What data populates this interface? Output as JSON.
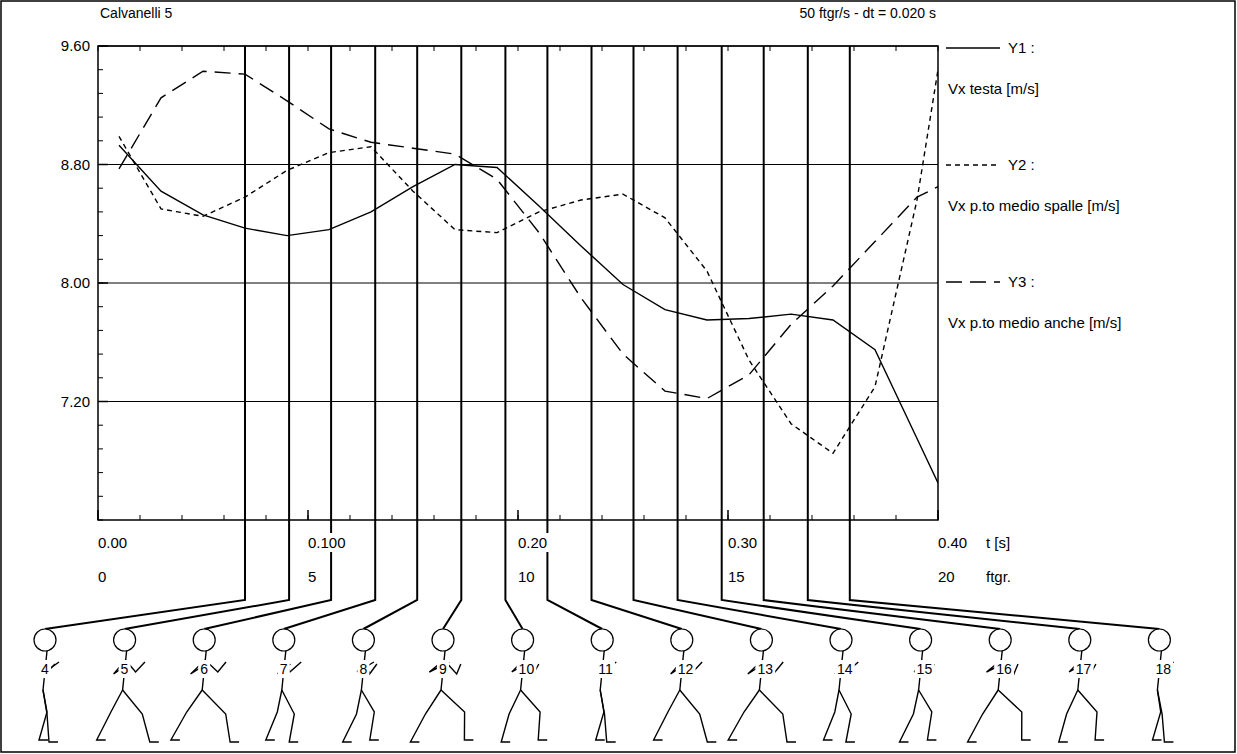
{
  "chart_data": {
    "type": "line",
    "title": "Calvanelli 5",
    "subtitle": "50 ftgr/s - dt = 0.020 s",
    "x_label": "t [s]",
    "x2_label": "ftgr.",
    "x": [
      0.01,
      0.03,
      0.05,
      0.07,
      0.09,
      0.11,
      0.13,
      0.15,
      0.17,
      0.19,
      0.21,
      0.23,
      0.25,
      0.27,
      0.29,
      0.31,
      0.33,
      0.35,
      0.37,
      0.39,
      0.4
    ],
    "series": [
      {
        "name": "Y1 :",
        "label": "Vx testa [m/s]",
        "color": "#000000",
        "line_style": "solid",
        "values": [
          8.93,
          8.62,
          8.46,
          8.37,
          8.32,
          8.36,
          8.48,
          8.65,
          8.8,
          8.78,
          8.52,
          8.25,
          7.99,
          7.82,
          7.75,
          7.76,
          7.79,
          7.75,
          7.55,
          6.95,
          6.65
        ]
      },
      {
        "name": "Y2 :",
        "label": "Vx p.to medio spalle [m/s]",
        "color": "#000000",
        "line_style": "dashed",
        "values": [
          8.99,
          8.5,
          8.45,
          8.58,
          8.76,
          8.88,
          8.92,
          8.62,
          8.36,
          8.34,
          8.48,
          8.56,
          8.6,
          8.44,
          8.08,
          7.48,
          7.05,
          6.85,
          7.3,
          8.56,
          9.44
        ]
      },
      {
        "name": "Y3 :",
        "label": "Vx p.to medio anche [m/s]",
        "color": "#000000",
        "line_style": "long_dash",
        "values": [
          8.77,
          9.25,
          9.43,
          9.41,
          9.23,
          9.04,
          8.95,
          8.91,
          8.87,
          8.7,
          8.34,
          7.9,
          7.52,
          7.27,
          7.22,
          7.38,
          7.72,
          7.98,
          8.28,
          8.58,
          8.65
        ]
      }
    ],
    "xlim": [
      0,
      0.4
    ],
    "xticks": [
      {
        "value": 0,
        "label": "0.00"
      },
      {
        "value": 0.1,
        "label": "0.100"
      },
      {
        "value": 0.2,
        "label": "0.20"
      },
      {
        "value": 0.3,
        "label": "0.30"
      },
      {
        "value": 0.4,
        "label": "0.40"
      }
    ],
    "x2lim": [
      0,
      20
    ],
    "x2ticks": [
      0,
      5,
      10,
      15,
      20
    ],
    "ylim": [
      6.4,
      9.6
    ],
    "yticks": [
      {
        "value": 7.2,
        "label": "7.20"
      },
      {
        "value": 8.0,
        "label": "8.00"
      },
      {
        "value": 8.8,
        "label": "8.80"
      },
      {
        "value": 9.6,
        "label": "9.60"
      }
    ],
    "grid": true,
    "legend": "right",
    "frames": [
      {
        "label": "4",
        "t": 0.07
      },
      {
        "label": "5",
        "t": 0.091
      },
      {
        "label": "6",
        "t": 0.111
      },
      {
        "label": "7",
        "t": 0.132
      },
      {
        "label": "8",
        "t": 0.152
      },
      {
        "label": "9",
        "t": 0.173
      },
      {
        "label": "10",
        "t": 0.194
      },
      {
        "label": "11",
        "t": 0.214
      },
      {
        "label": "12",
        "t": 0.235
      },
      {
        "label": "13",
        "t": 0.255
      },
      {
        "label": "14",
        "t": 0.276
      },
      {
        "label": "15",
        "t": 0.297
      },
      {
        "label": "16",
        "t": 0.317
      },
      {
        "label": "17",
        "t": 0.338
      },
      {
        "label": "18",
        "t": 0.358
      }
    ]
  }
}
